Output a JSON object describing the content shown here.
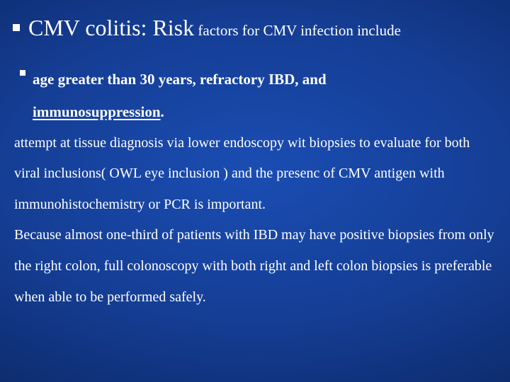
{
  "background_color_center": "#1a4db3",
  "background_color_edge": "#020a28",
  "text_color": "#ffffff",
  "font_family": "Times New Roman",
  "bullet1": {
    "title_big": "CMV colitis: Risk",
    "title_small": " factors for CMV infection include",
    "title_big_fontsize": 32,
    "title_small_fontsize": 21,
    "bullet_square_size": 10
  },
  "bullet2": {
    "line1_bold": "age greater than 30 years, refractory IBD, and",
    "line2_bold_underline": "immunosuppression",
    "line2_bold_tail": ".",
    "fontsize": 21,
    "bullet_square_size": 8
  },
  "body": {
    "text": " attempt at tissue diagnosis via lower endoscopy wit biopsies to evaluate for both viral inclusions( OWL eye inclusion ) and the presenc of CMV antigen with immunohistochemistry or PCR is important.",
    "text2": "Because almost one-third of patients with IBD may have positive biopsies from only the right colon, full colonoscopy with both right and left colon biopsies is preferable when able to be performed safely.",
    "fontsize": 20,
    "line_height": 2.18
  }
}
